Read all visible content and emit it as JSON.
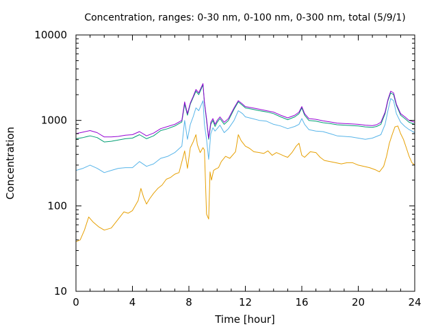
{
  "chart_data": {
    "type": "line",
    "title": "Concentration, ranges: 0-30 nm, 0-100 nm, 0-300 nm, total (5/9/1)",
    "xlabel": "Time [hour]",
    "ylabel": "Concentration",
    "xlim": [
      0,
      24
    ],
    "ylim": [
      10,
      10000
    ],
    "yscale": "log",
    "grid": false,
    "legend": "none",
    "xticks": [
      0,
      4,
      8,
      12,
      16,
      20,
      24
    ],
    "yticks": [
      10,
      100,
      1000,
      10000
    ],
    "xtick_labels": [
      "0",
      "4",
      "8",
      "12",
      "16",
      "20",
      "24"
    ],
    "ytick_labels": [
      "10",
      "100",
      "1000",
      "10000"
    ],
    "series": [
      {
        "color": "#e69f00",
        "x": [
          0,
          0.3,
          0.6,
          0.9,
          1.2,
          1.6,
          2,
          2.5,
          3,
          3.4,
          3.7,
          4,
          4.4,
          4.6,
          4.8,
          5,
          5.2,
          5.5,
          5.8,
          6.1,
          6.4,
          6.7,
          7,
          7.3,
          7.6,
          7.7,
          7.9,
          8.1,
          8.3,
          8.5,
          8.6,
          8.8,
          9,
          9.1,
          9.25,
          9.4,
          9.5,
          9.6,
          9.75,
          9.9,
          10.1,
          10.3,
          10.6,
          10.9,
          11.3,
          11.5,
          11.7,
          12,
          12.3,
          12.6,
          13,
          13.3,
          13.6,
          13.9,
          14.2,
          14.5,
          14.8,
          15,
          15.3,
          15.6,
          15.8,
          16,
          16.2,
          16.6,
          17,
          17.3,
          17.6,
          18,
          18.4,
          18.8,
          19.2,
          19.6,
          20,
          20.4,
          20.8,
          21.2,
          21.5,
          21.8,
          22,
          22.2,
          22.4,
          22.6,
          22.8,
          23,
          23.2,
          23.4,
          23.6,
          23.8,
          24
        ],
        "y": [
          38,
          40,
          52,
          74,
          65,
          57,
          52,
          55,
          70,
          85,
          82,
          88,
          115,
          160,
          125,
          105,
          120,
          140,
          160,
          175,
          205,
          215,
          235,
          245,
          380,
          440,
          275,
          480,
          560,
          680,
          520,
          420,
          480,
          450,
          80,
          70,
          250,
          200,
          260,
          270,
          280,
          330,
          380,
          360,
          430,
          680,
          580,
          500,
          470,
          430,
          420,
          410,
          440,
          390,
          420,
          400,
          380,
          370,
          420,
          500,
          540,
          390,
          370,
          430,
          420,
          370,
          340,
          330,
          320,
          310,
          320,
          320,
          300,
          290,
          280,
          265,
          250,
          290,
          380,
          540,
          680,
          840,
          860,
          700,
          600,
          480,
          380,
          320,
          300
        ]
      },
      {
        "color": "#56b4e9",
        "x": [
          0,
          0.5,
          1,
          1.5,
          2,
          2.5,
          3,
          3.5,
          4,
          4.5,
          5,
          5.5,
          6,
          6.5,
          7,
          7.5,
          7.7,
          7.9,
          8.1,
          8.3,
          8.5,
          8.7,
          9,
          9.1,
          9.25,
          9.4,
          9.55,
          9.7,
          9.85,
          10,
          10.2,
          10.5,
          10.8,
          11.2,
          11.5,
          11.8,
          12,
          12.5,
          13,
          13.5,
          14,
          14.5,
          15,
          15.5,
          15.8,
          16,
          16.2,
          16.5,
          17,
          17.5,
          18,
          18.5,
          19,
          19.5,
          20,
          20.5,
          21,
          21.3,
          21.6,
          21.9,
          22.1,
          22.3,
          22.5,
          22.7,
          23,
          23.3,
          23.6,
          24
        ],
        "y": [
          260,
          275,
          300,
          275,
          245,
          260,
          275,
          280,
          280,
          330,
          290,
          310,
          360,
          380,
          420,
          500,
          1000,
          600,
          900,
          1100,
          1400,
          1300,
          1700,
          900,
          600,
          350,
          700,
          820,
          750,
          800,
          880,
          720,
          800,
          1000,
          1300,
          1200,
          1100,
          1050,
          1000,
          980,
          900,
          860,
          800,
          850,
          900,
          1050,
          900,
          780,
          750,
          740,
          700,
          660,
          650,
          640,
          620,
          600,
          620,
          650,
          680,
          900,
          1300,
          1800,
          1700,
          1200,
          950,
          850,
          780,
          720
        ]
      },
      {
        "color": "#009e73",
        "x": [
          0,
          0.5,
          1,
          1.5,
          2,
          2.5,
          3,
          3.5,
          4,
          4.5,
          5,
          5.5,
          6,
          6.5,
          7,
          7.5,
          7.7,
          7.9,
          8.1,
          8.3,
          8.5,
          8.7,
          9,
          9.1,
          9.25,
          9.4,
          9.55,
          9.7,
          9.85,
          10,
          10.2,
          10.5,
          10.8,
          11.2,
          11.5,
          11.8,
          12,
          12.5,
          13,
          13.5,
          14,
          14.5,
          15,
          15.5,
          15.8,
          16,
          16.2,
          16.5,
          17,
          17.5,
          18,
          18.5,
          19,
          19.5,
          20,
          20.5,
          21,
          21.3,
          21.6,
          21.9,
          22.1,
          22.3,
          22.5,
          22.7,
          23,
          23.3,
          23.6,
          24
        ],
        "y": [
          610,
          630,
          660,
          630,
          560,
          570,
          590,
          610,
          620,
          680,
          610,
          660,
          760,
          800,
          860,
          960,
          1550,
          1150,
          1550,
          1850,
          2200,
          2000,
          2600,
          1600,
          1000,
          600,
          900,
          1000,
          850,
          950,
          1050,
          900,
          1000,
          1350,
          1650,
          1500,
          1400,
          1350,
          1300,
          1260,
          1200,
          1100,
          1020,
          1100,
          1200,
          1400,
          1150,
          1000,
          980,
          940,
          920,
          890,
          880,
          870,
          860,
          840,
          830,
          850,
          900,
          1200,
          1700,
          2100,
          2000,
          1500,
          1150,
          1050,
          950,
          900
        ]
      },
      {
        "color": "#9400d3",
        "x": [
          0,
          0.5,
          1,
          1.5,
          2,
          2.5,
          3,
          3.5,
          4,
          4.5,
          5,
          5.5,
          6,
          6.5,
          7,
          7.5,
          7.7,
          7.9,
          8.1,
          8.3,
          8.5,
          8.7,
          9,
          9.1,
          9.25,
          9.4,
          9.55,
          9.7,
          9.85,
          10,
          10.2,
          10.5,
          10.8,
          11.2,
          11.5,
          11.8,
          12,
          12.5,
          13,
          13.5,
          14,
          14.5,
          15,
          15.5,
          15.8,
          16,
          16.2,
          16.5,
          17,
          17.5,
          18,
          18.5,
          19,
          19.5,
          20,
          20.5,
          21,
          21.3,
          21.6,
          21.9,
          22.1,
          22.3,
          22.5,
          22.7,
          23,
          23.3,
          23.6,
          24
        ],
        "y": [
          700,
          730,
          760,
          720,
          640,
          640,
          650,
          670,
          680,
          740,
          660,
          710,
          800,
          850,
          900,
          1000,
          1650,
          1200,
          1600,
          1900,
          2300,
          2100,
          2700,
          1650,
          1050,
          620,
          950,
          1050,
          900,
          1000,
          1100,
          950,
          1050,
          1400,
          1700,
          1550,
          1450,
          1400,
          1350,
          1300,
          1250,
          1150,
          1070,
          1150,
          1250,
          1450,
          1200,
          1050,
          1030,
          990,
          960,
          930,
          920,
          910,
          900,
          880,
          870,
          890,
          950,
          1250,
          1750,
          2200,
          2100,
          1550,
          1200,
          1100,
          1000,
          950
        ]
      }
    ]
  }
}
